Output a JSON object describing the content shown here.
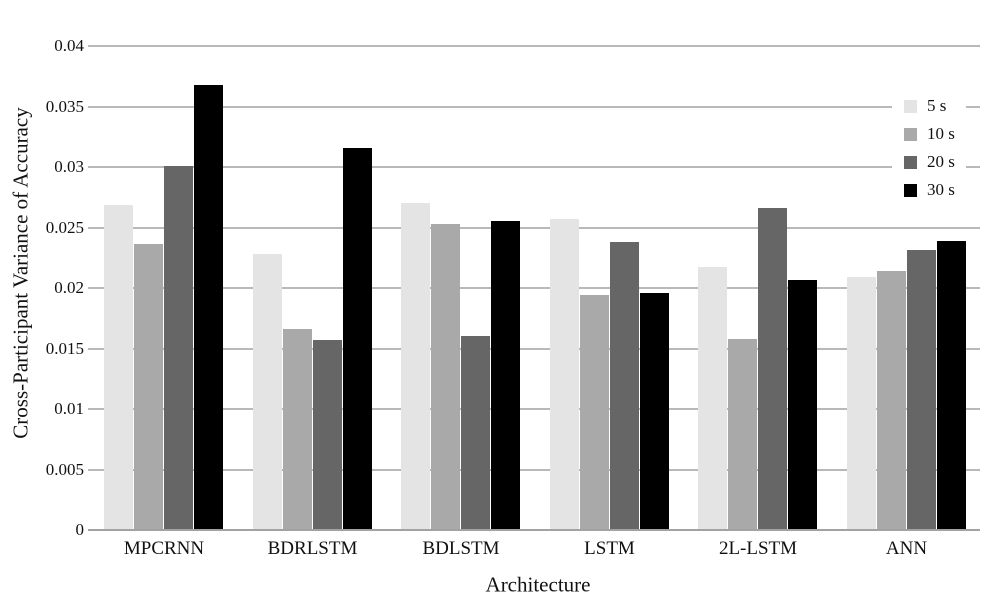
{
  "chart_data": {
    "type": "bar",
    "title": "",
    "xlabel": "Architecture",
    "ylabel": "Cross-Participant Variance of Accuracy",
    "categories": [
      "MPCRNN",
      "BDRLSTM",
      "BDLSTM",
      "LSTM",
      "2L-LSTM",
      "ANN"
    ],
    "series": [
      {
        "name": "5 s",
        "color": "#e4e4e4",
        "values": [
          0.0269,
          0.0228,
          0.027,
          0.0257,
          0.0217,
          0.0209
        ]
      },
      {
        "name": "10 s",
        "color": "#a9a9a9",
        "values": [
          0.0236,
          0.0166,
          0.0253,
          0.0194,
          0.0158,
          0.0214
        ]
      },
      {
        "name": "20 s",
        "color": "#666666",
        "values": [
          0.0301,
          0.0157,
          0.016,
          0.0238,
          0.0266,
          0.0231
        ]
      },
      {
        "name": "30 s",
        "color": "#000000",
        "values": [
          0.0368,
          0.0316,
          0.0255,
          0.0196,
          0.0207,
          0.0239
        ]
      }
    ],
    "ylim": [
      0,
      0.04
    ],
    "y_ticks": [
      {
        "value": 0,
        "label": "0"
      },
      {
        "value": 0.005,
        "label": "0.005"
      },
      {
        "value": 0.01,
        "label": "0.01"
      },
      {
        "value": 0.015,
        "label": "0.015"
      },
      {
        "value": 0.02,
        "label": "0.02"
      },
      {
        "value": 0.025,
        "label": "0.025"
      },
      {
        "value": 0.03,
        "label": "0.03"
      },
      {
        "value": 0.035,
        "label": "0.035"
      },
      {
        "value": 0.04,
        "label": "0.04"
      }
    ],
    "grid": "horizontal",
    "legend_position": "upper-right"
  }
}
